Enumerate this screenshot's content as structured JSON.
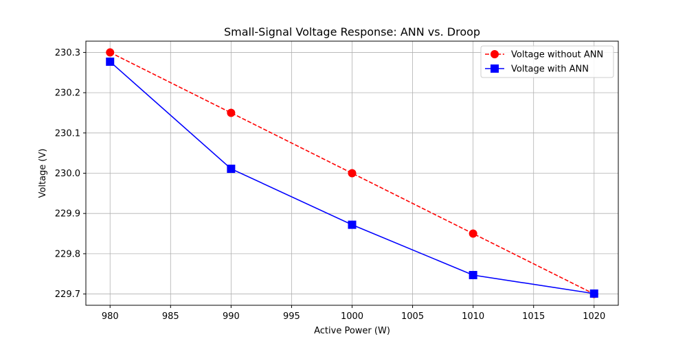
{
  "chart_data": {
    "type": "line",
    "title": "Small-Signal Voltage Response: ANN vs. Droop",
    "xlabel": "Active Power (W)",
    "ylabel": "Voltage (V)",
    "xlim": [
      978,
      1022
    ],
    "ylim": [
      229.672,
      230.328
    ],
    "xticks": [
      980,
      985,
      990,
      995,
      1000,
      1005,
      1010,
      1015,
      1020
    ],
    "yticks": [
      229.7,
      229.8,
      229.9,
      230.0,
      230.1,
      230.2,
      230.3
    ],
    "xtick_labels": [
      "980",
      "985",
      "990",
      "995",
      "1000",
      "1005",
      "1010",
      "1015",
      "1020"
    ],
    "ytick_labels": [
      "229.7",
      "229.8",
      "229.9",
      "230.0",
      "230.1",
      "230.2",
      "230.3"
    ],
    "grid": true,
    "legend_position": "top-right",
    "x": [
      980,
      990,
      1000,
      1010,
      1020
    ],
    "series": [
      {
        "name": "Voltage without ANN",
        "values": [
          230.3,
          230.15,
          230.0,
          229.85,
          229.7
        ],
        "color": "#ff0000",
        "linestyle": "dashed",
        "marker": "circle"
      },
      {
        "name": "Voltage with ANN",
        "values": [
          230.277,
          230.011,
          229.872,
          229.747,
          229.701
        ],
        "color": "#0000ff",
        "linestyle": "solid",
        "marker": "square"
      }
    ]
  }
}
